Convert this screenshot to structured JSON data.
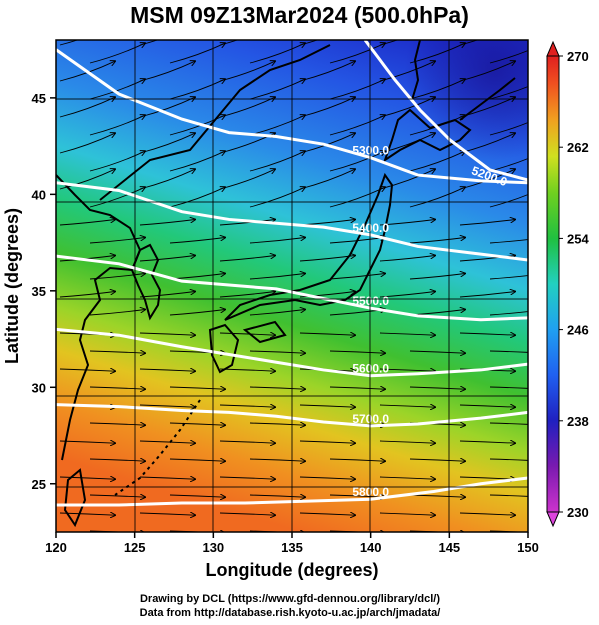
{
  "title": "MSM 09Z13Mar2024 (500.0hPa)",
  "map": {
    "lon_range": [
      120,
      150
    ],
    "lat_range": [
      22.5,
      48
    ],
    "xlabel": "Longitude (degrees)",
    "ylabel": "Latitude  (degrees)",
    "xticks": [
      "120",
      "125",
      "130",
      "135",
      "140",
      "145",
      "150"
    ],
    "yticks": [
      "25",
      "30",
      "35",
      "40",
      "45"
    ],
    "grid": true,
    "field": "temperature (K) shaded, geopotential height contours, wind streamlines",
    "contours": [
      {
        "label": "5300.0",
        "points": [
          [
            120,
            47.5
          ],
          [
            124,
            45.2
          ],
          [
            128,
            43.9
          ],
          [
            131,
            43.2
          ],
          [
            134,
            43.0
          ],
          [
            137,
            42.6
          ],
          [
            140,
            41.9
          ],
          [
            143,
            41.0
          ],
          [
            147,
            40.7
          ],
          [
            150,
            40.6
          ]
        ]
      },
      {
        "label": "5400.0",
        "points": [
          [
            120,
            40.6
          ],
          [
            124,
            40.2
          ],
          [
            128,
            39.1
          ],
          [
            131,
            38.7
          ],
          [
            134,
            38.5
          ],
          [
            137,
            38.3
          ],
          [
            140,
            37.9
          ],
          [
            143,
            37.3
          ],
          [
            147,
            36.9
          ],
          [
            150,
            36.6
          ]
        ]
      },
      {
        "label": "5500.0",
        "points": [
          [
            120,
            36.8
          ],
          [
            124,
            36.4
          ],
          [
            128,
            35.5
          ],
          [
            131,
            35.3
          ],
          [
            134,
            35.1
          ],
          [
            137,
            34.6
          ],
          [
            140,
            34.1
          ],
          [
            143,
            33.7
          ],
          [
            147,
            33.5
          ],
          [
            150,
            33.6
          ]
        ]
      },
      {
        "label": "5600.0",
        "points": [
          [
            120,
            33.0
          ],
          [
            124,
            32.7
          ],
          [
            128,
            32.1
          ],
          [
            131,
            31.7
          ],
          [
            134,
            31.3
          ],
          [
            137,
            30.9
          ],
          [
            140,
            30.6
          ],
          [
            143,
            30.7
          ],
          [
            147,
            30.9
          ],
          [
            150,
            31.2
          ]
        ]
      },
      {
        "label": "5700.0",
        "points": [
          [
            120,
            29.1
          ],
          [
            124,
            29.0
          ],
          [
            128,
            28.8
          ],
          [
            131,
            28.7
          ],
          [
            134,
            28.5
          ],
          [
            137,
            28.2
          ],
          [
            140,
            28.0
          ],
          [
            143,
            28.1
          ],
          [
            147,
            28.4
          ],
          [
            150,
            28.7
          ]
        ]
      },
      {
        "label": "5800.0",
        "points": [
          [
            120,
            23.9
          ],
          [
            124,
            23.9
          ],
          [
            128,
            24.0
          ],
          [
            132,
            24.0
          ],
          [
            136,
            24.1
          ],
          [
            140,
            24.2
          ],
          [
            144,
            24.6
          ],
          [
            147,
            25.0
          ],
          [
            150,
            25.3
          ]
        ]
      }
    ],
    "extra_contour_label": "5200.0"
  },
  "colorbar": {
    "min": 230,
    "max": 270,
    "ticks": [
      "270",
      "262",
      "254",
      "246",
      "238",
      "230"
    ]
  },
  "credits": {
    "line1": "Drawing by DCL (https://www.gfd-dennou.org/library/dcl/)",
    "line2": "Data from http://database.rish.kyoto-u.ac.jp/arch/jmadata/"
  }
}
